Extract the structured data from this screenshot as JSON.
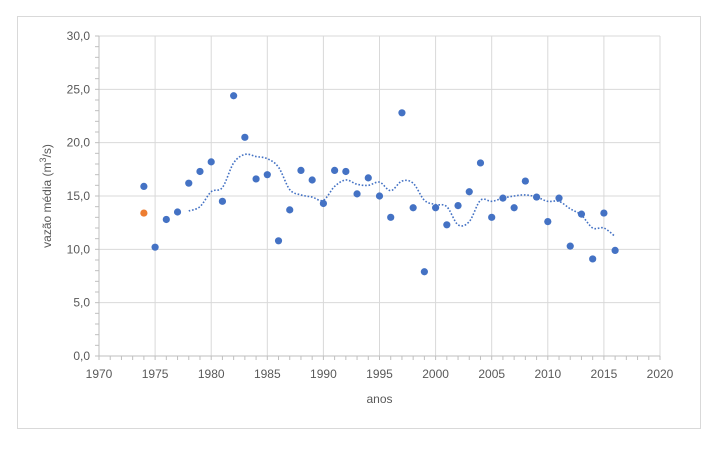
{
  "chart_data": {
    "type": "scatter",
    "xlabel": "anos",
    "ylabel_parts": [
      "vazão média (m",
      "3",
      "/s)"
    ],
    "xlim": [
      1970,
      2020
    ],
    "ylim": [
      0,
      30
    ],
    "x_ticks": [
      "1970",
      "1975",
      "1980",
      "1985",
      "1990",
      "1995",
      "2000",
      "2005",
      "2010",
      "2015",
      "2020"
    ],
    "y_ticks": [
      "0,0",
      "5,0",
      "10,0",
      "15,0",
      "20,0",
      "25,0",
      "30,0"
    ],
    "grid": true,
    "colors": {
      "points": "#4472c4",
      "highlight": "#ed7d31",
      "trend": "#4472c4",
      "grid": "#d9d9d9",
      "axis": "#bfbfbf"
    },
    "series": [
      {
        "x": [
          1974,
          1975,
          1976,
          1977,
          1978,
          1979,
          1980,
          1981,
          1982,
          1983,
          1984,
          1985,
          1986,
          1987,
          1988,
          1989,
          1990,
          1991,
          1992,
          1993,
          1994,
          1995,
          1996,
          1997,
          1998,
          1999,
          2000,
          2001,
          2002,
          2003,
          2004,
          2005,
          2006,
          2007,
          2008,
          2009,
          2010,
          2011,
          2012,
          2013,
          2014,
          2015,
          2016
        ],
        "y": [
          15.9,
          10.2,
          12.8,
          13.5,
          16.2,
          17.3,
          18.2,
          14.5,
          24.4,
          20.5,
          16.6,
          17.0,
          10.8,
          13.7,
          17.4,
          16.5,
          14.3,
          17.4,
          17.3,
          15.2,
          16.7,
          15.0,
          13.0,
          22.8,
          13.9,
          7.9,
          13.9,
          12.3,
          14.1,
          15.4,
          18.1,
          13.0,
          14.8,
          13.9,
          16.4,
          14.9,
          12.6,
          14.8,
          10.3,
          13.3,
          9.1,
          13.4,
          9.9
        ]
      },
      {
        "x": [
          1974
        ],
        "y": [
          13.4
        ]
      },
      {
        "type": "trend-line",
        "x": [
          1978,
          1979,
          1980,
          1981,
          1982,
          1983,
          1984,
          1985,
          1986,
          1987,
          1988,
          1989,
          1990,
          1991,
          1992,
          1993,
          1994,
          1995,
          1996,
          1997,
          1998,
          1999,
          2000,
          2001,
          2002,
          2003,
          2004,
          2005,
          2006,
          2007,
          2008,
          2009,
          2010,
          2011,
          2012,
          2013,
          2014,
          2015,
          2016
        ],
        "y": [
          13.6,
          14.0,
          15.4,
          15.8,
          18.1,
          18.9,
          18.7,
          18.5,
          17.7,
          15.6,
          15.1,
          14.9,
          14.6,
          15.9,
          16.5,
          16.1,
          16.0,
          16.3,
          15.5,
          16.4,
          16.2,
          14.6,
          14.2,
          14.0,
          12.3,
          12.6,
          14.6,
          14.5,
          14.8,
          15.0,
          15.1,
          14.9,
          14.5,
          14.5,
          13.8,
          13.2,
          12.0,
          12.0,
          11.2
        ]
      }
    ]
  }
}
